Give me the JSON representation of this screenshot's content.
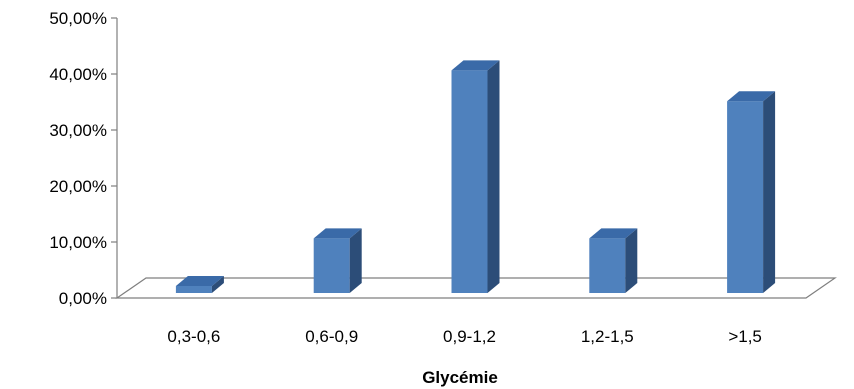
{
  "chart_data": {
    "type": "bar",
    "categories": [
      "0,3-0,6",
      "0,6-0,9",
      "0,9-1,2",
      "1,2-1,5",
      ">1,5"
    ],
    "values": [
      2.5,
      11.0,
      41.0,
      11.0,
      35.5
    ],
    "xlabel": "Glycémie",
    "ylabel": "",
    "ylim": [
      0,
      50
    ],
    "yticks": [
      0,
      10,
      20,
      30,
      40,
      50
    ],
    "ytick_labels": [
      "0,00%",
      "10,00%",
      "20,00%",
      "30,00%",
      "40,00%",
      "50,00%"
    ],
    "grid": false,
    "legend": "none",
    "style": "3d-column",
    "colors": {
      "bar_front": "#4f81bd",
      "bar_top": "#3a6aa8",
      "bar_side": "#2c4d78",
      "axis": "#7f7f7f"
    }
  }
}
